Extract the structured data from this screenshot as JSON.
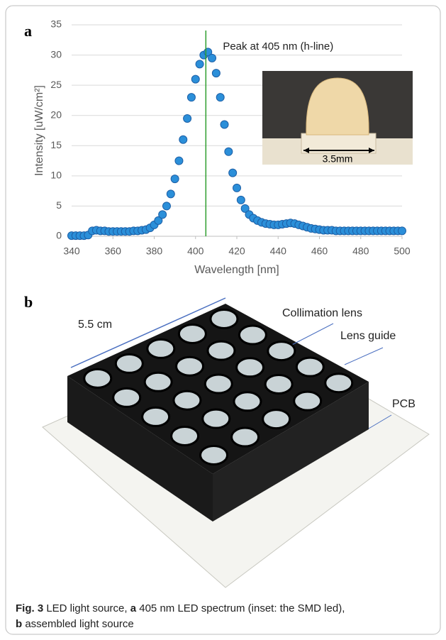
{
  "panel_a_label": "a",
  "panel_b_label": "b",
  "chart_data": {
    "type": "scatter",
    "x_label": "Wavelength [nm]",
    "y_label": "Intensity  [uW/cm²]",
    "annotation": "Peak at 405 nm (h-line)",
    "peak_line": {
      "x": 405,
      "color": "#2e9e2e"
    },
    "color": "#2b8fd9",
    "grid": true,
    "xlim": [
      340,
      500
    ],
    "ylim": [
      0,
      35
    ],
    "xticks": [
      340,
      360,
      380,
      400,
      420,
      440,
      460,
      480,
      500
    ],
    "yticks": [
      0,
      5,
      10,
      15,
      20,
      25,
      30,
      35
    ],
    "x": [
      340,
      342,
      344,
      346,
      348,
      350,
      352,
      354,
      356,
      358,
      360,
      362,
      364,
      366,
      368,
      370,
      372,
      374,
      376,
      378,
      380,
      382,
      384,
      386,
      388,
      390,
      392,
      394,
      396,
      398,
      400,
      402,
      404,
      406,
      408,
      410,
      412,
      414,
      416,
      418,
      420,
      422,
      424,
      426,
      428,
      430,
      432,
      434,
      436,
      438,
      440,
      442,
      444,
      446,
      448,
      450,
      452,
      454,
      456,
      458,
      460,
      462,
      464,
      466,
      468,
      470,
      472,
      474,
      476,
      478,
      480,
      482,
      484,
      486,
      488,
      490,
      492,
      494,
      496,
      498,
      500
    ],
    "values": [
      0.1,
      0.1,
      0.1,
      0.1,
      0.2,
      0.9,
      1.0,
      0.9,
      0.9,
      0.8,
      0.8,
      0.8,
      0.8,
      0.8,
      0.8,
      0.9,
      0.9,
      1.0,
      1.1,
      1.4,
      1.9,
      2.6,
      3.6,
      5.0,
      7.0,
      9.5,
      12.5,
      16.0,
      19.5,
      23.0,
      26.0,
      28.5,
      30.0,
      30.5,
      29.5,
      27.0,
      23.0,
      18.5,
      14.0,
      10.5,
      8.0,
      6.0,
      4.6,
      3.6,
      3.0,
      2.6,
      2.3,
      2.1,
      2.0,
      1.9,
      1.9,
      2.0,
      2.1,
      2.2,
      2.1,
      1.9,
      1.7,
      1.5,
      1.3,
      1.2,
      1.1,
      1.0,
      1.0,
      1.0,
      0.9,
      0.9,
      0.9,
      0.9,
      0.9,
      0.9,
      0.9,
      0.9,
      0.9,
      0.9,
      0.9,
      0.9,
      0.9,
      0.9,
      0.9,
      0.9,
      0.9
    ]
  },
  "inset_label": "3.5mm",
  "photo_b": {
    "dimension": "5.5 cm",
    "lens": "Collimation lens",
    "guide": "Lens guide",
    "pcb": "PCB"
  },
  "caption": {
    "figure": "Fig. 3",
    "text_1": " LED light source, ",
    "part_a": "a",
    "text_2": " 405 nm LED spectrum (inset: the SMD led),",
    "part_b": "b",
    "text_3": " assembled light source"
  }
}
